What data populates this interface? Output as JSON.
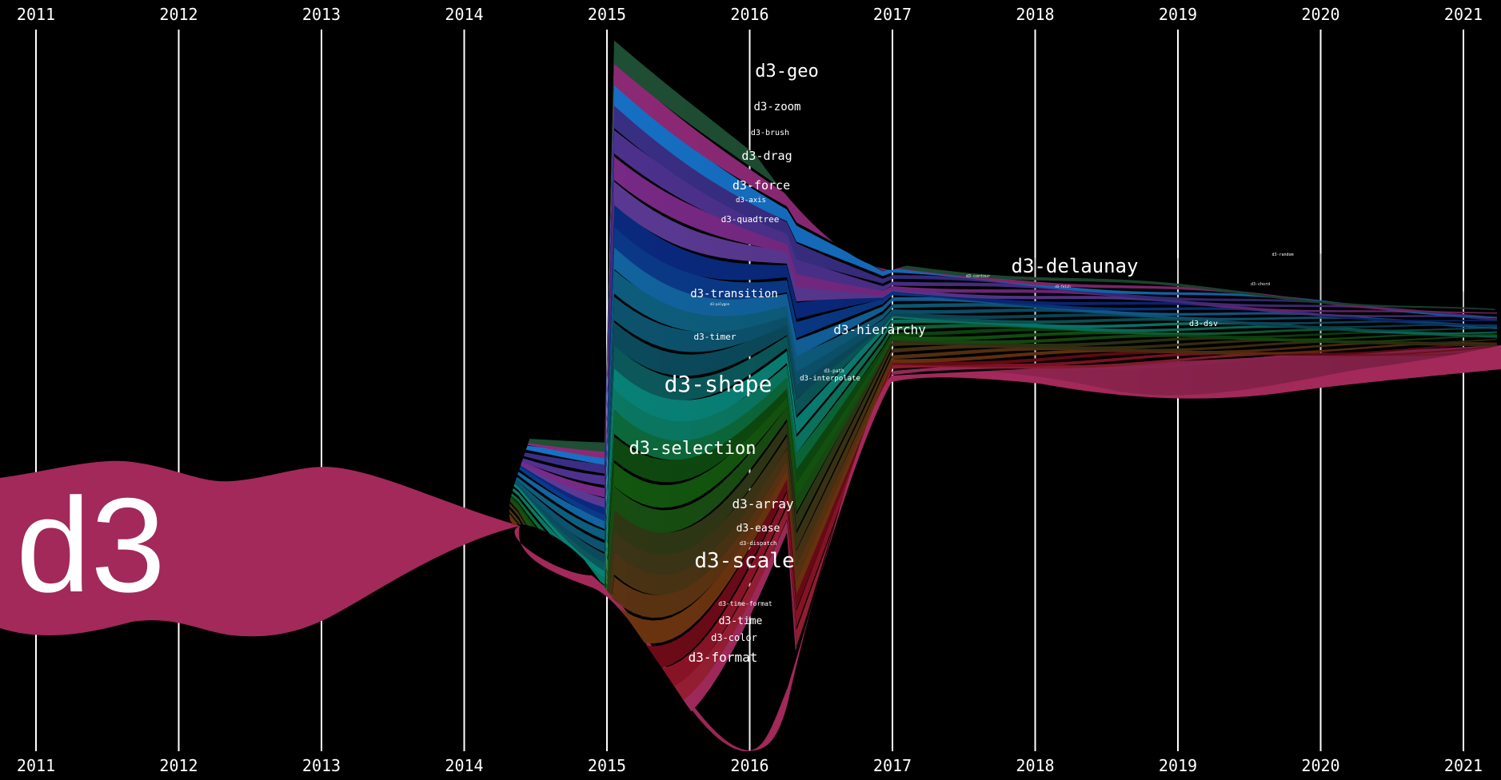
{
  "colors": {
    "background": "#000000",
    "gridline": "#ffffff",
    "d3": "#a2295a"
  },
  "chart_data": {
    "type": "area",
    "subtype": "streamgraph",
    "x_ticks": [
      "2011",
      "2012",
      "2013",
      "2014",
      "2015",
      "2016",
      "2017",
      "2018",
      "2019",
      "2020",
      "2021"
    ],
    "xlim": [
      2011.0,
      2021.27
    ],
    "grid": true,
    "tick_labels_position": "top and bottom",
    "series": [
      {
        "name": "d3",
        "color": "#a2295a",
        "x": [
          2011.0,
          2011.65,
          2012.35,
          2012.95,
          2013.6,
          2014.35
        ],
        "values": [
          32,
          38,
          30,
          36,
          24,
          0.5
        ]
      },
      {
        "name": "d3-format",
        "color": "#a52b5f"
      },
      {
        "name": "d3-color",
        "color": "#9a1f35"
      },
      {
        "name": "d3-time",
        "color": "#8e1428"
      },
      {
        "name": "d3-time-format",
        "color": "#6e0b18"
      },
      {
        "name": "d3-scale",
        "color": "#6e3510"
      },
      {
        "name": "d3-dispatch",
        "color": "#5c3412"
      },
      {
        "name": "d3-ease",
        "color": "#4a3414"
      },
      {
        "name": "d3-array",
        "color": "#3d3516"
      },
      {
        "name": "d3-selection",
        "color": "#2f3815"
      },
      {
        "name": "d3-shape",
        "color": "#184f12"
      },
      {
        "name": "d3-interpolate",
        "color": "#13580f"
      },
      {
        "name": "d3-path",
        "color": "#0e4a10"
      },
      {
        "name": "d3-timer",
        "color": "#0c6b3c"
      },
      {
        "name": "d3-polygon",
        "color": "#0a7a64"
      },
      {
        "name": "d3-transition",
        "color": "#088479"
      },
      {
        "name": "d3-hierarchy",
        "color": "#0b5a5c"
      },
      {
        "name": "d3-quadtree",
        "color": "#0b4c5e"
      },
      {
        "name": "d3-axis",
        "color": "#0d5470"
      },
      {
        "name": "d3-force",
        "color": "#0e5f80"
      },
      {
        "name": "d3-drag",
        "color": "#1265a2"
      },
      {
        "name": "d3-brush",
        "color": "#0a3a8a"
      },
      {
        "name": "d3-zoom",
        "color": "#0a2a80"
      },
      {
        "name": "d3-geo",
        "color": "#5c3a96"
      },
      {
        "name": "d3-delaunay",
        "color": "#7a2a88"
      },
      {
        "name": "d3-contour",
        "color": "#4e3290"
      },
      {
        "name": "d3-fetch",
        "color": "#3a2f86"
      },
      {
        "name": "d3-chord",
        "color": "#1672c8"
      },
      {
        "name": "d3-random",
        "color": "#902a78"
      },
      {
        "name": "d3-dsv",
        "color": "#1f5035"
      }
    ]
  },
  "labels": {
    "d3": "d3",
    "geo": "d3-geo",
    "zoom": "d3-zoom",
    "brush": "d3-brush",
    "drag": "d3-drag",
    "force": "d3-force",
    "axis": "d3-axis",
    "quadtree": "d3-quadtree",
    "transition": "d3-transition",
    "polygon": "d3-polygon",
    "timer": "d3-timer",
    "shape": "d3-shape",
    "selection": "d3-selection",
    "array": "d3-array",
    "ease": "d3-ease",
    "dispatch": "d3-dispatch",
    "scale": "d3-scale",
    "time_format": "d3-time-format",
    "time": "d3-time",
    "color": "d3-color",
    "format": "d3-format",
    "hierarchy": "d3-hierarchy",
    "path": "d3-path",
    "interpolate": "d3-interpolate",
    "delaunay": "d3-delaunay",
    "contour": "d3-contour",
    "fetch": "d3-fetch",
    "random": "d3-random",
    "chord": "d3-chord",
    "dsv": "d3-dsv"
  }
}
